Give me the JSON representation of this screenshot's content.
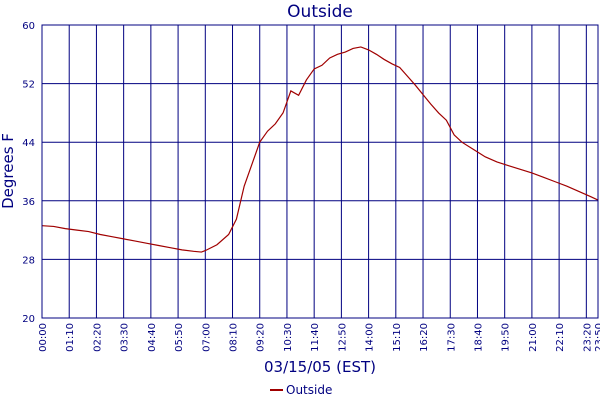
{
  "chart_data": {
    "type": "line",
    "title": "Outside",
    "xlabel": "03/15/05 (EST)",
    "ylabel": "Degrees F",
    "ylim": [
      20,
      60
    ],
    "yticks": [
      20,
      28,
      36,
      44,
      52,
      60
    ],
    "xlim": [
      "00:00",
      "23:50"
    ],
    "xticks": [
      "00:00",
      "01:10",
      "02:20",
      "03:30",
      "04:40",
      "05:50",
      "07:00",
      "08:10",
      "09:20",
      "10:30",
      "11:40",
      "12:50",
      "14:00",
      "15:10",
      "16:20",
      "17:30",
      "18:40",
      "19:50",
      "21:00",
      "22:10",
      "23:20",
      "23:50"
    ],
    "grid": true,
    "legend_position": "bottom-center",
    "colors": {
      "line": "#a00000",
      "text": "#000080",
      "grid": "#000080"
    },
    "series": [
      {
        "name": "Outside",
        "points": [
          [
            "00:00",
            32.6
          ],
          [
            "00:30",
            32.5
          ],
          [
            "01:00",
            32.2
          ],
          [
            "01:30",
            32.0
          ],
          [
            "02:00",
            31.8
          ],
          [
            "02:30",
            31.4
          ],
          [
            "03:00",
            31.1
          ],
          [
            "03:30",
            30.8
          ],
          [
            "04:00",
            30.5
          ],
          [
            "04:30",
            30.2
          ],
          [
            "05:00",
            29.9
          ],
          [
            "05:30",
            29.6
          ],
          [
            "06:00",
            29.3
          ],
          [
            "06:30",
            29.1
          ],
          [
            "06:50",
            29.0
          ],
          [
            "07:00",
            29.2
          ],
          [
            "07:30",
            30.0
          ],
          [
            "08:00",
            31.4
          ],
          [
            "08:20",
            33.5
          ],
          [
            "08:40",
            38.0
          ],
          [
            "09:00",
            41.0
          ],
          [
            "09:20",
            44.0
          ],
          [
            "09:40",
            45.5
          ],
          [
            "10:00",
            46.5
          ],
          [
            "10:20",
            48.0
          ],
          [
            "10:40",
            51.0
          ],
          [
            "11:00",
            50.4
          ],
          [
            "11:20",
            52.5
          ],
          [
            "11:40",
            54.0
          ],
          [
            "12:00",
            54.5
          ],
          [
            "12:20",
            55.5
          ],
          [
            "12:40",
            56.0
          ],
          [
            "13:00",
            56.3
          ],
          [
            "13:20",
            56.8
          ],
          [
            "13:40",
            57.0
          ],
          [
            "14:00",
            56.6
          ],
          [
            "14:20",
            56.0
          ],
          [
            "14:40",
            55.3
          ],
          [
            "15:00",
            54.7
          ],
          [
            "15:20",
            54.2
          ],
          [
            "15:40",
            53.0
          ],
          [
            "16:00",
            51.8
          ],
          [
            "16:20",
            50.5
          ],
          [
            "16:40",
            49.2
          ],
          [
            "17:00",
            48.0
          ],
          [
            "17:20",
            47.0
          ],
          [
            "17:40",
            45.0
          ],
          [
            "18:00",
            44.0
          ],
          [
            "18:30",
            43.0
          ],
          [
            "19:00",
            42.0
          ],
          [
            "19:30",
            41.3
          ],
          [
            "20:00",
            40.8
          ],
          [
            "20:30",
            40.3
          ],
          [
            "21:00",
            39.8
          ],
          [
            "21:30",
            39.2
          ],
          [
            "22:00",
            38.6
          ],
          [
            "22:30",
            38.0
          ],
          [
            "23:00",
            37.3
          ],
          [
            "23:30",
            36.6
          ],
          [
            "23:50",
            36.1
          ]
        ]
      }
    ]
  }
}
